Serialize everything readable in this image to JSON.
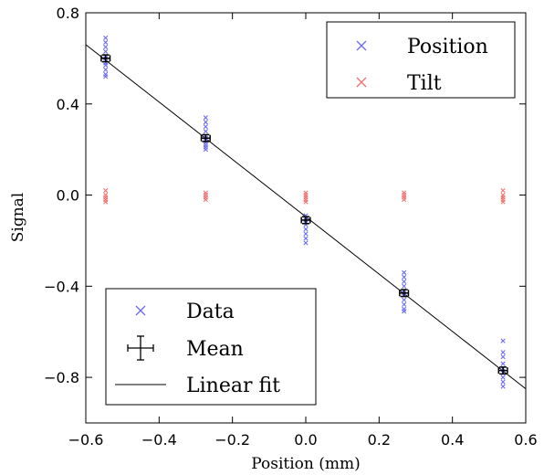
{
  "chart_data": {
    "type": "scatter",
    "title": "",
    "xlabel": "Position (mm)",
    "ylabel": "Signal",
    "xlim": [
      -0.6,
      0.6
    ],
    "ylim": [
      -1.0,
      0.8
    ],
    "xticks": [
      -0.6,
      -0.4,
      -0.2,
      0.0,
      0.2,
      0.4,
      0.6
    ],
    "xtick_labels": [
      "−0.6",
      "−0.4",
      "−0.2",
      "0.0",
      "0.2",
      "0.4",
      "0.6"
    ],
    "yticks": [
      -0.8,
      -0.4,
      0.0,
      0.4,
      0.8
    ],
    "ytick_labels": [
      "−0.8",
      "−0.4",
      "0.0",
      "0.4",
      "0.8"
    ],
    "grid": false,
    "series": [
      {
        "name": "Position",
        "marker": "x",
        "color": "#6b6bf0",
        "points": [
          [
            -0.546,
            0.69
          ],
          [
            -0.546,
            0.67
          ],
          [
            -0.546,
            0.65
          ],
          [
            -0.546,
            0.63
          ],
          [
            -0.546,
            0.61
          ],
          [
            -0.546,
            0.6
          ],
          [
            -0.546,
            0.58
          ],
          [
            -0.546,
            0.57
          ],
          [
            -0.546,
            0.55
          ],
          [
            -0.546,
            0.53
          ],
          [
            -0.546,
            0.52
          ],
          [
            -0.273,
            0.34
          ],
          [
            -0.273,
            0.32
          ],
          [
            -0.273,
            0.3
          ],
          [
            -0.273,
            0.28
          ],
          [
            -0.273,
            0.26
          ],
          [
            -0.273,
            0.25
          ],
          [
            -0.273,
            0.24
          ],
          [
            -0.273,
            0.23
          ],
          [
            -0.273,
            0.22
          ],
          [
            -0.273,
            0.21
          ],
          [
            -0.273,
            0.2
          ],
          [
            0.0,
            -0.09
          ],
          [
            0.0,
            -0.1
          ],
          [
            0.0,
            -0.11
          ],
          [
            0.0,
            -0.12
          ],
          [
            0.0,
            -0.13
          ],
          [
            0.0,
            -0.15
          ],
          [
            0.0,
            -0.17
          ],
          [
            0.0,
            -0.19
          ],
          [
            0.0,
            -0.21
          ],
          [
            0.268,
            -0.34
          ],
          [
            0.268,
            -0.36
          ],
          [
            0.268,
            -0.38
          ],
          [
            0.268,
            -0.4
          ],
          [
            0.268,
            -0.42
          ],
          [
            0.268,
            -0.43
          ],
          [
            0.268,
            -0.44
          ],
          [
            0.268,
            -0.46
          ],
          [
            0.268,
            -0.48
          ],
          [
            0.268,
            -0.5
          ],
          [
            0.268,
            -0.51
          ],
          [
            0.538,
            -0.64
          ],
          [
            0.538,
            -0.69
          ],
          [
            0.538,
            -0.71
          ],
          [
            0.538,
            -0.74
          ],
          [
            0.538,
            -0.76
          ],
          [
            0.538,
            -0.78
          ],
          [
            0.538,
            -0.8
          ],
          [
            0.538,
            -0.82
          ],
          [
            0.538,
            -0.84
          ]
        ]
      },
      {
        "name": "Tilt",
        "marker": "x",
        "color": "#f07070",
        "points": [
          [
            -0.546,
            0.02
          ],
          [
            -0.546,
            0.0
          ],
          [
            -0.546,
            -0.01
          ],
          [
            -0.546,
            -0.02
          ],
          [
            -0.546,
            -0.03
          ],
          [
            -0.273,
            0.01
          ],
          [
            -0.273,
            0.0
          ],
          [
            -0.273,
            -0.01
          ],
          [
            -0.273,
            -0.02
          ],
          [
            0.0,
            0.01
          ],
          [
            0.0,
            0.0
          ],
          [
            0.0,
            -0.01
          ],
          [
            0.0,
            -0.02
          ],
          [
            0.0,
            -0.03
          ],
          [
            0.268,
            0.01
          ],
          [
            0.268,
            0.0
          ],
          [
            0.268,
            -0.01
          ],
          [
            0.268,
            -0.02
          ],
          [
            0.538,
            0.02
          ],
          [
            0.538,
            0.0
          ],
          [
            0.538,
            -0.01
          ],
          [
            0.538,
            -0.02
          ],
          [
            0.538,
            -0.03
          ]
        ]
      },
      {
        "name": "Mean",
        "marker": "errorbar",
        "color": "#000000",
        "points": [
          {
            "x": -0.546,
            "y": 0.6,
            "xerr": 0.012,
            "yerr": 0.015
          },
          {
            "x": -0.273,
            "y": 0.25,
            "xerr": 0.012,
            "yerr": 0.015
          },
          {
            "x": 0.0,
            "y": -0.11,
            "xerr": 0.012,
            "yerr": 0.015
          },
          {
            "x": 0.268,
            "y": -0.43,
            "xerr": 0.012,
            "yerr": 0.015
          },
          {
            "x": 0.538,
            "y": -0.77,
            "xerr": 0.012,
            "yerr": 0.015
          }
        ]
      },
      {
        "name": "Linear fit",
        "marker": "line",
        "color": "#000000",
        "points": [
          [
            -0.6,
            0.66
          ],
          [
            0.6,
            -0.85
          ]
        ]
      }
    ],
    "legends": [
      {
        "placement": "top-right",
        "entries": [
          {
            "label": "Position",
            "symbol": "x",
            "color": "#6b6bf0"
          },
          {
            "label": "Tilt",
            "symbol": "x",
            "color": "#f07070"
          }
        ]
      },
      {
        "placement": "bottom-left",
        "entries": [
          {
            "label": "Data",
            "symbol": "x",
            "color": "#6b6bf0"
          },
          {
            "label": "Mean",
            "symbol": "errorbar",
            "color": "#000000"
          },
          {
            "label": "Linear fit",
            "symbol": "line",
            "color": "#000000"
          }
        ]
      }
    ]
  }
}
